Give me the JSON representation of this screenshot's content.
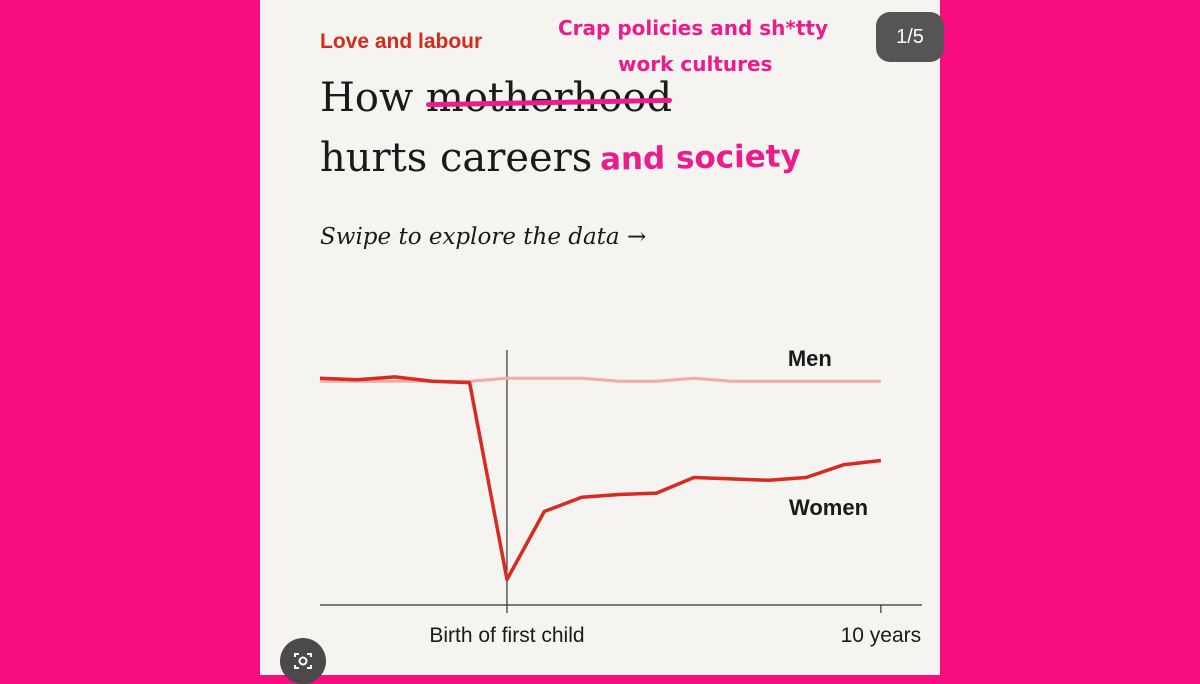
{
  "page_badge": "1/5",
  "kicker": "Love and labour",
  "headline": {
    "line1_prefix": "How ",
    "line1_struck": "motherhood",
    "line2": "hurts careers"
  },
  "annotations": {
    "line1": "Crap policies and sh*tty",
    "line2": "work cultures",
    "line3": "and society"
  },
  "swipe_hint": "Swipe to explore the data →",
  "colors": {
    "background": "#f80d80",
    "annotation": "#ec1c8c",
    "kicker": "#d32b1e",
    "women": "#d62a22",
    "men": "#f4aaa6"
  },
  "icons": {
    "lens": "lens-icon"
  },
  "chart_data": {
    "type": "line",
    "title": "",
    "xlabel": "",
    "ylabel": "",
    "x": [
      -5,
      -4,
      -3,
      -2,
      -1,
      0,
      1,
      2,
      3,
      4,
      5,
      6,
      7,
      8,
      9,
      10
    ],
    "xlim": [
      -5,
      11.1
    ],
    "ylim": [
      -0.8,
      0.1
    ],
    "x_tick_labels": [
      {
        "x": 0,
        "label": "Birth of first child"
      },
      {
        "x": 10,
        "label": "10 years"
      }
    ],
    "series": [
      {
        "name": "Men",
        "color": "#f4aaa6",
        "values": [
          -0.01,
          -0.01,
          -0.01,
          -0.01,
          -0.01,
          0.0,
          0.0,
          0.0,
          -0.01,
          -0.01,
          0.0,
          -0.01,
          -0.01,
          -0.01,
          -0.01,
          -0.01
        ]
      },
      {
        "name": "Women",
        "color": "#d62a22",
        "values": [
          0.0,
          -0.005,
          0.005,
          -0.01,
          -0.015,
          -0.71,
          -0.47,
          -0.42,
          -0.41,
          -0.405,
          -0.35,
          -0.355,
          -0.36,
          -0.35,
          -0.305,
          -0.29
        ]
      }
    ],
    "grid": false,
    "legend": "direct labels"
  }
}
